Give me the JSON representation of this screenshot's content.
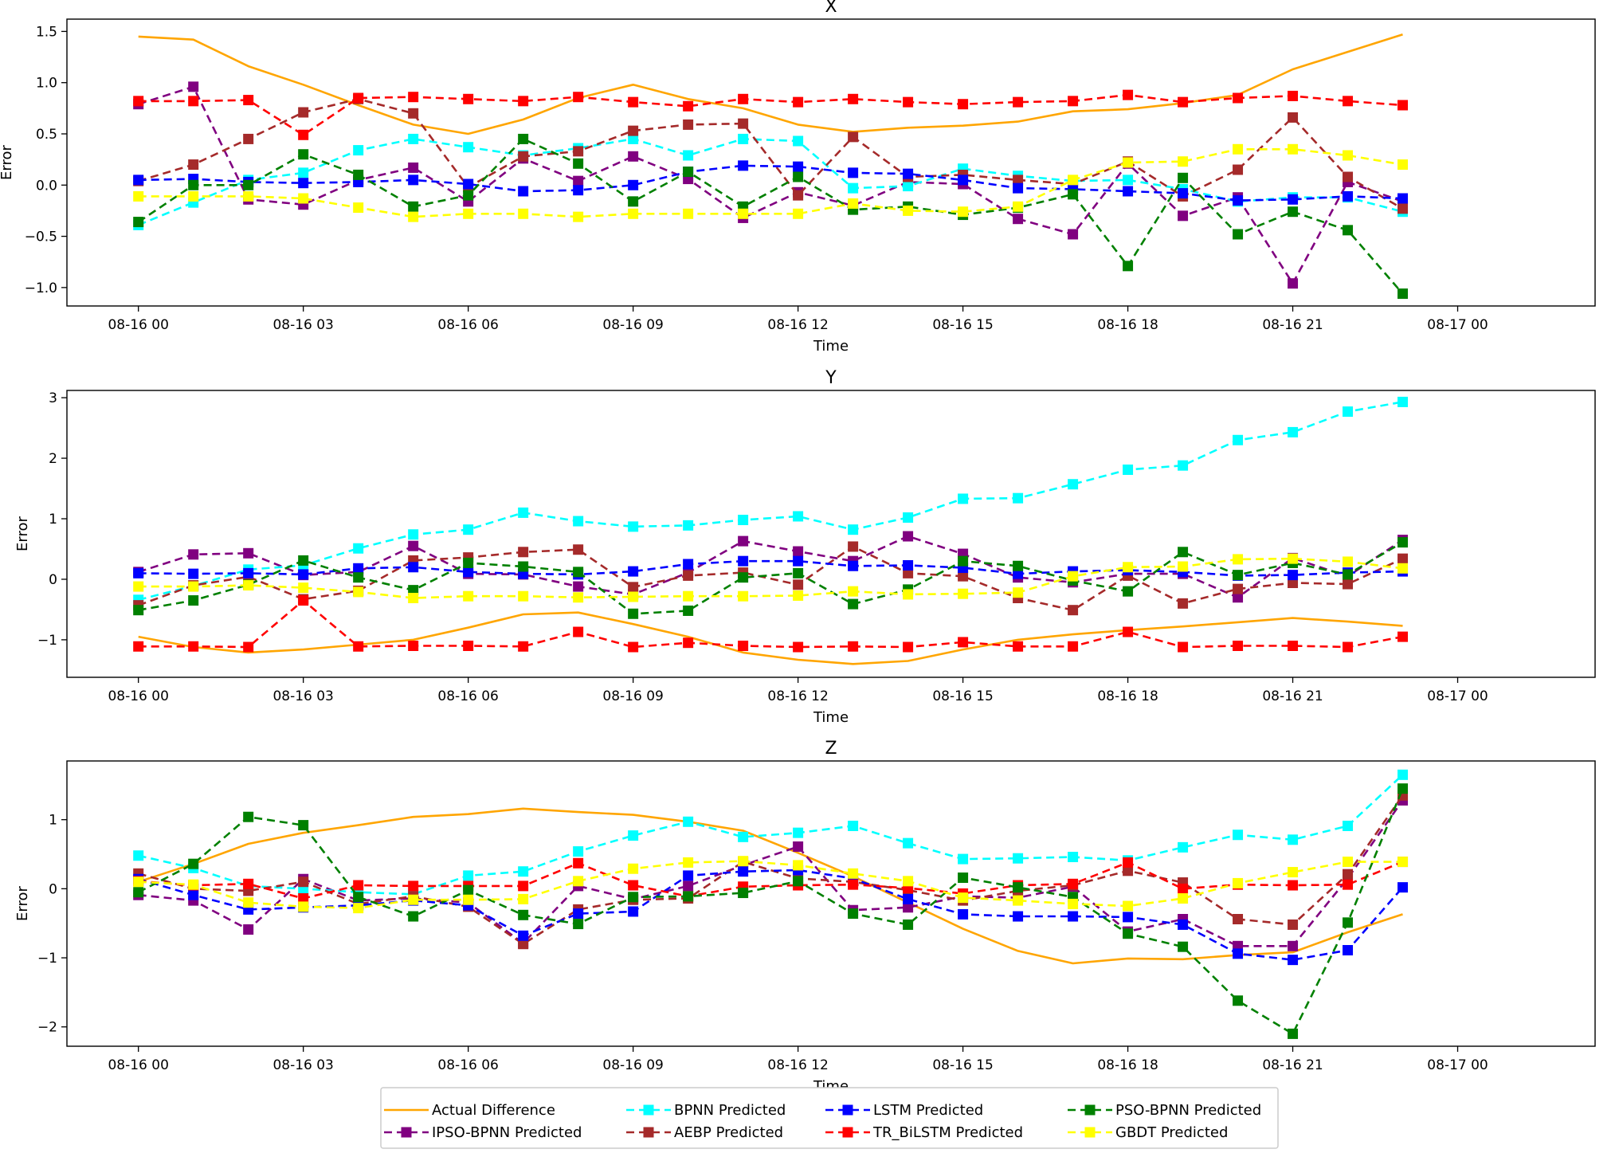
{
  "figure": {
    "legend": {
      "entries": [
        {
          "key": "actual",
          "label": "Actual Difference",
          "color": "#FFA500",
          "style": "solid"
        },
        {
          "key": "bpnn",
          "label": "BPNN Predicted",
          "color": "#00FFFF",
          "style": "dashed-square"
        },
        {
          "key": "lstm",
          "label": "LSTM Predicted",
          "color": "#0000FF",
          "style": "dashed-square"
        },
        {
          "key": "pso",
          "label": "PSO-BPNN Predicted",
          "color": "#008000",
          "style": "dashed-square"
        },
        {
          "key": "ipso",
          "label": "IPSO-BPNN Predicted",
          "color": "#800080",
          "style": "dashed-square"
        },
        {
          "key": "aebp",
          "label": "AEBP Predicted",
          "color": "#A52A2A",
          "style": "dashed-square"
        },
        {
          "key": "trbilstm",
          "label": "TR_BiLSTM Predicted",
          "color": "#FF0000",
          "style": "dashed-square"
        },
        {
          "key": "gbdt",
          "label": "GBDT Predicted",
          "color": "#FFFF00",
          "style": "dashed-square"
        }
      ]
    }
  },
  "chart_data": [
    {
      "type": "line",
      "title": "X",
      "xlabel": "Time",
      "ylabel": "Error",
      "xlim": [
        -1.3,
        26.5
      ],
      "ylim": [
        -1.18,
        1.62
      ],
      "x_hours": [
        0,
        1,
        2,
        3,
        4,
        5,
        6,
        7,
        8,
        9,
        10,
        11,
        12,
        13,
        14,
        15,
        16,
        17,
        18,
        19,
        20,
        21,
        22,
        23
      ],
      "x_ticks": [
        0,
        3,
        6,
        9,
        12,
        15,
        18,
        21,
        24
      ],
      "x_tick_labels": [
        "08-16 00",
        "08-16 03",
        "08-16 06",
        "08-16 09",
        "08-16 12",
        "08-16 15",
        "08-16 18",
        "08-16 21",
        "08-17 00"
      ],
      "y_ticks": [
        -1.0,
        -0.5,
        0.0,
        0.5,
        1.0,
        1.5
      ],
      "y_tick_labels": [
        "−1.0",
        "−0.5",
        "0.0",
        "0.5",
        "1.0",
        "1.5"
      ],
      "series": [
        {
          "key": "actual",
          "name": "Actual Difference",
          "values": [
            1.45,
            1.42,
            1.16,
            0.98,
            0.78,
            0.59,
            0.5,
            0.64,
            0.85,
            0.98,
            0.84,
            0.75,
            0.59,
            0.52,
            0.56,
            0.58,
            0.62,
            0.72,
            0.74,
            0.8,
            0.88,
            1.13,
            1.3,
            1.47
          ]
        },
        {
          "key": "bpnn",
          "name": "BPNN Predicted",
          "values": [
            -0.39,
            -0.17,
            0.05,
            0.12,
            0.34,
            0.45,
            0.37,
            0.29,
            0.36,
            0.45,
            0.29,
            0.45,
            0.43,
            -0.03,
            -0.01,
            0.16,
            0.09,
            0.04,
            0.05,
            -0.04,
            -0.16,
            -0.12,
            -0.12,
            -0.26
          ]
        },
        {
          "key": "lstm",
          "name": "LSTM Predicted",
          "values": [
            0.05,
            0.06,
            0.03,
            0.02,
            0.03,
            0.05,
            0.01,
            -0.06,
            -0.05,
            0.0,
            0.13,
            0.19,
            0.18,
            0.12,
            0.11,
            0.05,
            -0.03,
            -0.04,
            -0.06,
            -0.08,
            -0.15,
            -0.14,
            -0.11,
            -0.13
          ]
        },
        {
          "key": "pso",
          "name": "PSO-BPNN Predicted",
          "values": [
            -0.36,
            0.0,
            0.0,
            0.3,
            0.1,
            -0.21,
            -0.1,
            0.45,
            0.21,
            -0.16,
            0.13,
            -0.21,
            0.08,
            -0.24,
            -0.21,
            -0.29,
            -0.22,
            -0.09,
            -0.79,
            0.07,
            -0.48,
            -0.26,
            -0.44,
            -1.06
          ]
        },
        {
          "key": "ipso",
          "name": "IPSO-BPNN Predicted",
          "values": [
            0.79,
            0.96,
            -0.14,
            -0.19,
            0.05,
            0.17,
            -0.16,
            0.26,
            0.04,
            0.28,
            0.06,
            -0.32,
            -0.07,
            -0.2,
            0.03,
            0.01,
            -0.33,
            -0.48,
            0.21,
            -0.3,
            -0.12,
            -0.96,
            0.03,
            -0.16
          ]
        },
        {
          "key": "aebp",
          "name": "AEBP Predicted",
          "values": [
            0.04,
            0.2,
            0.45,
            0.71,
            0.84,
            0.7,
            -0.02,
            0.28,
            0.33,
            0.53,
            0.59,
            0.6,
            -0.1,
            0.47,
            0.08,
            0.1,
            0.05,
            0.01,
            0.23,
            -0.11,
            0.15,
            0.66,
            0.08,
            -0.23
          ]
        },
        {
          "key": "trbilstm",
          "name": "TR_BiLSTM Predicted",
          "values": [
            0.82,
            0.82,
            0.83,
            0.49,
            0.85,
            0.86,
            0.84,
            0.82,
            0.86,
            0.81,
            0.77,
            0.84,
            0.81,
            0.84,
            0.81,
            0.79,
            0.81,
            0.82,
            0.88,
            0.81,
            0.85,
            0.87,
            0.82,
            0.78
          ]
        },
        {
          "key": "gbdt",
          "name": "GBDT Predicted",
          "values": [
            -0.11,
            -0.11,
            -0.11,
            -0.13,
            -0.22,
            -0.31,
            -0.28,
            -0.28,
            -0.31,
            -0.28,
            -0.28,
            -0.28,
            -0.28,
            -0.18,
            -0.25,
            -0.26,
            -0.21,
            0.05,
            0.22,
            0.23,
            0.35,
            0.35,
            0.29,
            0.2
          ]
        }
      ]
    },
    {
      "type": "line",
      "title": "Y",
      "xlabel": "Time",
      "ylabel": "Error",
      "xlim": [
        -1.3,
        26.5
      ],
      "ylim": [
        -1.62,
        3.12
      ],
      "x_hours": [
        0,
        1,
        2,
        3,
        4,
        5,
        6,
        7,
        8,
        9,
        10,
        11,
        12,
        13,
        14,
        15,
        16,
        17,
        18,
        19,
        20,
        21,
        22,
        23
      ],
      "x_ticks": [
        0,
        3,
        6,
        9,
        12,
        15,
        18,
        21,
        24
      ],
      "x_tick_labels": [
        "08-16 00",
        "08-16 03",
        "08-16 06",
        "08-16 09",
        "08-16 12",
        "08-16 15",
        "08-16 18",
        "08-16 21",
        "08-17 00"
      ],
      "y_ticks": [
        -1,
        0,
        1,
        2,
        3
      ],
      "y_tick_labels": [
        "−1",
        "0",
        "1",
        "2",
        "3"
      ],
      "series": [
        {
          "key": "actual",
          "name": "Actual Difference",
          "values": [
            -0.95,
            -1.12,
            -1.21,
            -1.16,
            -1.08,
            -1.0,
            -0.8,
            -0.58,
            -0.55,
            -0.74,
            -0.95,
            -1.21,
            -1.33,
            -1.4,
            -1.35,
            -1.16,
            -1.0,
            -0.91,
            -0.84,
            -0.78,
            -0.71,
            -0.64,
            -0.7,
            -0.77
          ]
        },
        {
          "key": "bpnn",
          "name": "BPNN Predicted",
          "values": [
            -0.34,
            -0.11,
            0.16,
            0.23,
            0.51,
            0.74,
            0.82,
            1.1,
            0.96,
            0.87,
            0.89,
            0.98,
            1.04,
            0.82,
            1.02,
            1.33,
            1.34,
            1.57,
            1.81,
            1.88,
            2.3,
            2.43,
            2.77,
            2.93
          ]
        },
        {
          "key": "lstm",
          "name": "LSTM Predicted",
          "values": [
            0.1,
            0.09,
            0.1,
            0.08,
            0.18,
            0.2,
            0.12,
            0.09,
            0.08,
            0.13,
            0.25,
            0.3,
            0.3,
            0.22,
            0.23,
            0.19,
            0.09,
            0.13,
            0.15,
            0.12,
            0.06,
            0.07,
            0.11,
            0.13
          ]
        },
        {
          "key": "pso",
          "name": "PSO-BPNN Predicted",
          "values": [
            -0.51,
            -0.35,
            -0.09,
            0.31,
            0.03,
            -0.18,
            0.27,
            0.21,
            0.12,
            -0.57,
            -0.52,
            0.03,
            0.1,
            -0.41,
            -0.17,
            0.3,
            0.22,
            -0.02,
            -0.2,
            0.45,
            0.07,
            0.27,
            0.08,
            0.61
          ]
        },
        {
          "key": "ipso",
          "name": "IPSO-BPNN Predicted",
          "values": [
            0.12,
            0.41,
            0.43,
            0.07,
            0.12,
            0.55,
            0.09,
            0.08,
            -0.12,
            -0.25,
            0.11,
            0.63,
            0.46,
            0.3,
            0.71,
            0.42,
            0.03,
            -0.05,
            0.09,
            0.09,
            -0.3,
            0.35,
            0.05,
            0.65
          ]
        },
        {
          "key": "aebp",
          "name": "AEBP Predicted",
          "values": [
            -0.43,
            -0.1,
            0.04,
            -0.33,
            -0.19,
            0.31,
            0.36,
            0.45,
            0.49,
            -0.13,
            0.06,
            0.11,
            -0.09,
            0.54,
            0.1,
            0.05,
            -0.31,
            -0.51,
            0.06,
            -0.4,
            -0.16,
            -0.06,
            -0.08,
            0.34
          ]
        },
        {
          "key": "trbilstm",
          "name": "TR_BiLSTM Predicted",
          "values": [
            -1.11,
            -1.11,
            -1.12,
            -0.35,
            -1.11,
            -1.1,
            -1.1,
            -1.11,
            -0.87,
            -1.12,
            -1.05,
            -1.1,
            -1.12,
            -1.11,
            -1.12,
            -1.04,
            -1.11,
            -1.11,
            -0.87,
            -1.12,
            -1.1,
            -1.1,
            -1.12,
            -0.95
          ]
        },
        {
          "key": "gbdt",
          "name": "GBDT Predicted",
          "values": [
            -0.12,
            -0.12,
            -0.1,
            -0.14,
            -0.21,
            -0.31,
            -0.28,
            -0.28,
            -0.3,
            -0.29,
            -0.28,
            -0.28,
            -0.27,
            -0.2,
            -0.25,
            -0.24,
            -0.22,
            0.05,
            0.2,
            0.21,
            0.33,
            0.34,
            0.29,
            0.18
          ]
        }
      ]
    },
    {
      "type": "line",
      "title": "Z",
      "xlabel": "Time",
      "ylabel": "Error",
      "xlim": [
        -1.3,
        26.5
      ],
      "ylim": [
        -2.28,
        1.85
      ],
      "x_hours": [
        0,
        1,
        2,
        3,
        4,
        5,
        6,
        7,
        8,
        9,
        10,
        11,
        12,
        13,
        14,
        15,
        16,
        17,
        18,
        19,
        20,
        21,
        22,
        23
      ],
      "x_ticks": [
        0,
        3,
        6,
        9,
        12,
        15,
        18,
        21,
        24
      ],
      "x_tick_labels": [
        "08-16 00",
        "08-16 03",
        "08-16 06",
        "08-16 09",
        "08-16 12",
        "08-16 15",
        "08-16 18",
        "08-16 21",
        "08-17 00"
      ],
      "y_ticks": [
        -2,
        -1,
        0,
        1
      ],
      "y_tick_labels": [
        "−2",
        "−1",
        "0",
        "1"
      ],
      "series": [
        {
          "key": "actual",
          "name": "Actual Difference",
          "values": [
            0.1,
            0.36,
            0.65,
            0.81,
            0.92,
            1.04,
            1.08,
            1.16,
            1.11,
            1.07,
            0.97,
            0.84,
            0.52,
            0.18,
            -0.2,
            -0.58,
            -0.9,
            -1.08,
            -1.01,
            -1.02,
            -0.96,
            -0.92,
            -0.63,
            -0.37
          ]
        },
        {
          "key": "bpnn",
          "name": "BPNN Predicted",
          "values": [
            0.48,
            0.3,
            0.04,
            0.0,
            -0.05,
            -0.08,
            0.19,
            0.25,
            0.54,
            0.77,
            0.97,
            0.75,
            0.81,
            0.91,
            0.66,
            0.43,
            0.44,
            0.46,
            0.41,
            0.6,
            0.78,
            0.71,
            0.91,
            1.65
          ]
        },
        {
          "key": "lstm",
          "name": "LSTM Predicted",
          "values": [
            0.14,
            -0.09,
            -0.3,
            -0.27,
            -0.24,
            -0.17,
            -0.24,
            -0.68,
            -0.36,
            -0.33,
            0.19,
            0.25,
            0.27,
            0.15,
            -0.15,
            -0.37,
            -0.4,
            -0.4,
            -0.41,
            -0.52,
            -0.94,
            -1.03,
            -0.89,
            0.02
          ]
        },
        {
          "key": "pso",
          "name": "PSO-BPNN Predicted",
          "values": [
            -0.05,
            0.36,
            1.04,
            0.92,
            -0.12,
            -0.4,
            -0.02,
            -0.38,
            -0.51,
            -0.12,
            -0.11,
            -0.06,
            0.11,
            -0.36,
            -0.52,
            0.16,
            0.02,
            -0.12,
            -0.65,
            -0.84,
            -1.62,
            -2.1,
            -0.49,
            1.45
          ]
        },
        {
          "key": "ipso",
          "name": "IPSO-BPNN Predicted",
          "values": [
            -0.09,
            -0.17,
            -0.59,
            0.14,
            -0.17,
            -0.14,
            -0.2,
            -0.79,
            0.04,
            -0.15,
            0.04,
            0.34,
            0.61,
            -0.31,
            -0.27,
            -0.11,
            -0.13,
            0.03,
            -0.62,
            -0.44,
            -0.83,
            -0.83,
            0.15,
            1.28
          ]
        },
        {
          "key": "aebp",
          "name": "AEBP Predicted",
          "values": [
            0.22,
            0.0,
            -0.03,
            0.1,
            -0.22,
            -0.11,
            -0.26,
            -0.8,
            -0.3,
            -0.16,
            -0.14,
            0.39,
            0.15,
            0.1,
            -0.02,
            -0.17,
            -0.03,
            0.05,
            0.26,
            0.09,
            -0.44,
            -0.52,
            0.21,
            1.35
          ]
        },
        {
          "key": "trbilstm",
          "name": "TR_BiLSTM Predicted",
          "values": [
            0.11,
            0.05,
            0.07,
            -0.14,
            0.05,
            0.04,
            0.04,
            0.04,
            0.37,
            0.05,
            -0.11,
            0.03,
            0.05,
            0.06,
            0.01,
            -0.07,
            0.05,
            0.07,
            0.38,
            0.0,
            0.06,
            0.05,
            0.06,
            0.39
          ]
        },
        {
          "key": "gbdt",
          "name": "GBDT Predicted",
          "values": [
            0.1,
            0.06,
            -0.2,
            -0.26,
            -0.28,
            -0.16,
            -0.16,
            -0.15,
            0.11,
            0.29,
            0.38,
            0.4,
            0.34,
            0.22,
            0.11,
            -0.13,
            -0.17,
            -0.22,
            -0.25,
            -0.14,
            0.08,
            0.24,
            0.39,
            0.39
          ]
        }
      ]
    }
  ]
}
